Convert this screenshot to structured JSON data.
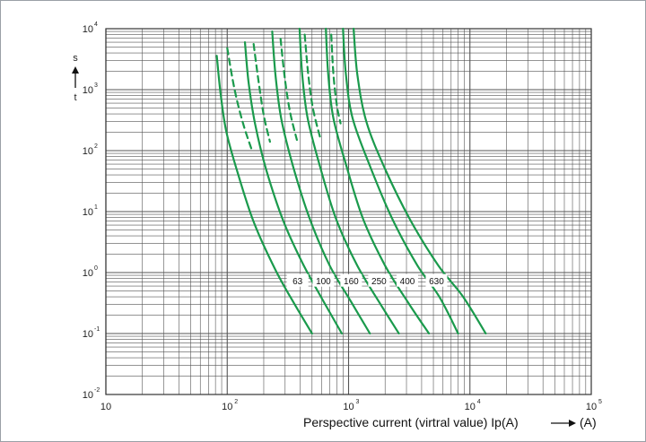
{
  "chart_data": {
    "type": "line",
    "xscale": "log",
    "yscale": "log",
    "xlim": [
      10,
      100000
    ],
    "ylim": [
      0.01,
      10000
    ],
    "grid": true,
    "xlabel": "Perspective current (virtral value) Ip(A)",
    "xunit": "(A)",
    "ylabel_top": "s",
    "ylabel_bottom": "t",
    "x_ticks": [
      {
        "base": "10",
        "exp": ""
      },
      {
        "base": "10",
        "exp": "2"
      },
      {
        "base": "10",
        "exp": "3"
      },
      {
        "base": "10",
        "exp": "4"
      },
      {
        "base": "10",
        "exp": "5"
      }
    ],
    "y_ticks": [
      {
        "base": "10",
        "exp": "-2"
      },
      {
        "base": "10",
        "exp": "-1"
      },
      {
        "base": "10",
        "exp": "0"
      },
      {
        "base": "10",
        "exp": "1"
      },
      {
        "base": "10",
        "exp": "2"
      },
      {
        "base": "10",
        "exp": "3"
      },
      {
        "base": "10",
        "exp": "4"
      }
    ],
    "line_color": "#1a9a4c",
    "grid_color": "#555555",
    "series": [
      {
        "name": "63",
        "upper": [
          [
            82,
            3600
          ],
          [
            88,
            900
          ],
          [
            98,
            210
          ],
          [
            120,
            48
          ],
          [
            165,
            6.8
          ],
          [
            250,
            1.1
          ],
          [
            360,
            0.3
          ],
          [
            500,
            0.1
          ]
        ],
        "lower": [
          [
            100,
            4800
          ],
          [
            115,
            1000
          ],
          [
            135,
            280
          ],
          [
            160,
            100
          ]
        ]
      },
      {
        "name": "100",
        "upper": [
          [
            140,
            6000
          ],
          [
            150,
            1300
          ],
          [
            170,
            270
          ],
          [
            210,
            48
          ],
          [
            290,
            7
          ],
          [
            420,
            1.4
          ],
          [
            620,
            0.34
          ],
          [
            880,
            0.1
          ]
        ],
        "lower": [
          [
            165,
            5600
          ],
          [
            182,
            1300
          ],
          [
            200,
            380
          ],
          [
            225,
            140
          ]
        ]
      },
      {
        "name": "160",
        "upper": [
          [
            235,
            9000
          ],
          [
            250,
            1700
          ],
          [
            280,
            320
          ],
          [
            350,
            54
          ],
          [
            480,
            7.5
          ],
          [
            700,
            1.3
          ],
          [
            1060,
            0.32
          ],
          [
            1500,
            0.1
          ]
        ],
        "lower": [
          [
            275,
            6800
          ],
          [
            300,
            1400
          ],
          [
            330,
            420
          ],
          [
            375,
            150
          ]
        ]
      },
      {
        "name": "250",
        "upper": [
          [
            395,
            10000
          ],
          [
            415,
            1800
          ],
          [
            460,
            340
          ],
          [
            580,
            56
          ],
          [
            790,
            7.5
          ],
          [
            1180,
            1.3
          ],
          [
            1800,
            0.32
          ],
          [
            2600,
            0.1
          ]
        ],
        "lower": [
          [
            435,
            8000
          ],
          [
            465,
            1800
          ],
          [
            510,
            480
          ],
          [
            590,
            150
          ]
        ]
      },
      {
        "name": "400",
        "upper": [
          [
            650,
            10000
          ],
          [
            680,
            1800
          ],
          [
            750,
            340
          ],
          [
            960,
            56
          ],
          [
            1320,
            7.5
          ],
          [
            2000,
            1.3
          ],
          [
            3100,
            0.32
          ],
          [
            4600,
            0.1
          ]
        ],
        "lower": [
          [
            720,
            8000
          ],
          [
            750,
            1800
          ],
          [
            800,
            560
          ],
          [
            860,
            280
          ]
        ]
      },
      {
        "name": "630",
        "upper": [
          [
            900,
            10000
          ],
          [
            950,
            1800
          ],
          [
            1080,
            340
          ],
          [
            1500,
            56
          ],
          [
            2300,
            7.5
          ],
          [
            3700,
            1.3
          ],
          [
            5600,
            0.4
          ],
          [
            8000,
            0.1
          ]
        ],
        "lower": []
      },
      {
        "name": "",
        "upper": [
          [
            1100,
            10000
          ],
          [
            1180,
            1800
          ],
          [
            1400,
            300
          ],
          [
            2000,
            50
          ],
          [
            3200,
            7.5
          ],
          [
            5500,
            1.3
          ],
          [
            8800,
            0.4
          ],
          [
            13500,
            0.1
          ]
        ],
        "lower": []
      }
    ],
    "curve_labels": [
      {
        "text": "63",
        "x": 380,
        "y": 0.72
      },
      {
        "text": "100",
        "x": 620,
        "y": 0.72
      },
      {
        "text": "160",
        "x": 1050,
        "y": 0.72
      },
      {
        "text": "250",
        "x": 1780,
        "y": 0.72
      },
      {
        "text": "400",
        "x": 3050,
        "y": 0.72
      },
      {
        "text": "630",
        "x": 5300,
        "y": 0.72
      }
    ]
  }
}
